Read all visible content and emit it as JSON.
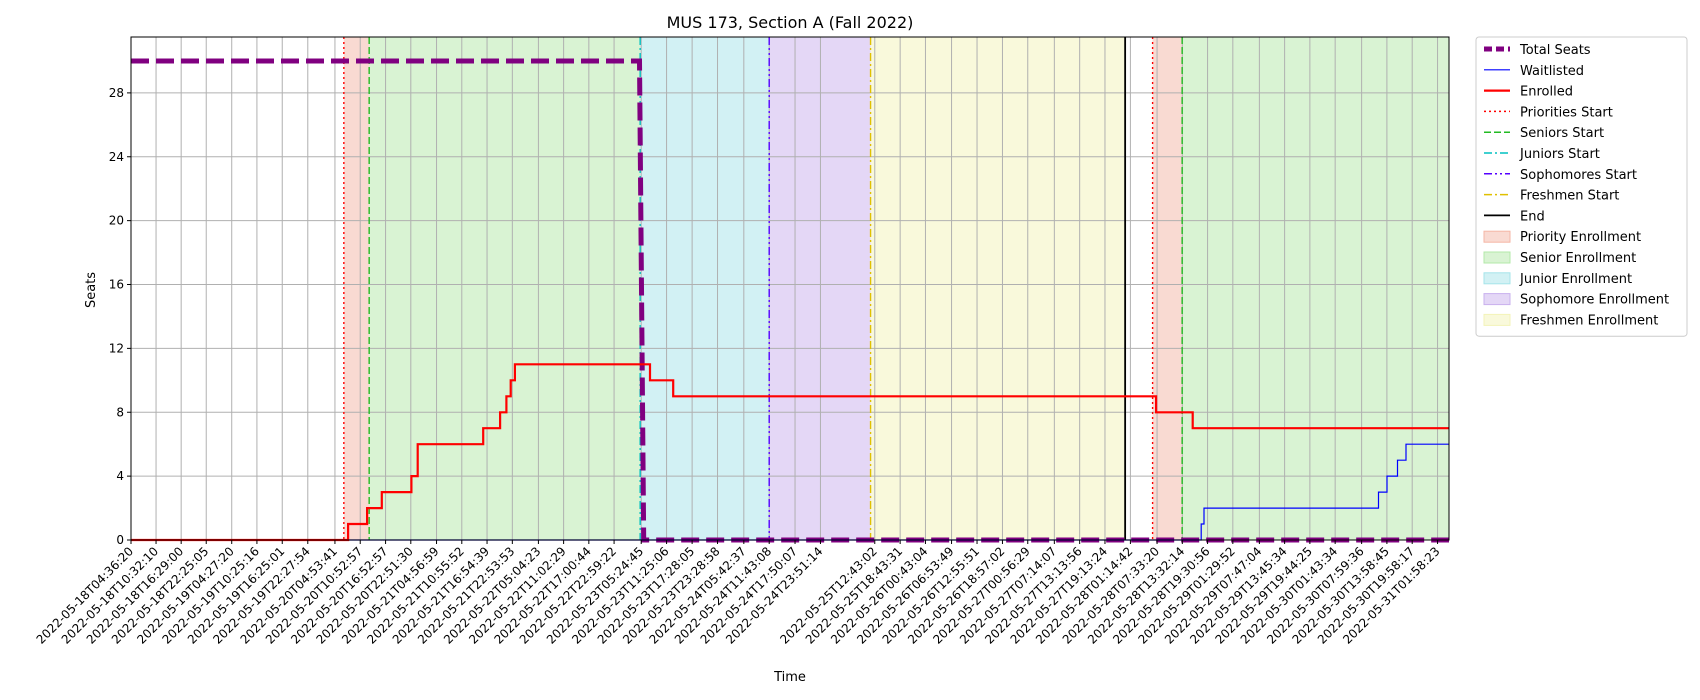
{
  "chart_data": {
    "type": "line",
    "title": "MUS 173, Section A (Fall 2022)",
    "xlabel": "Time",
    "ylabel": "Seats",
    "x_range": [
      "2022-05-18T04:36:20",
      "2022-05-31T04:41:00"
    ],
    "ylim": [
      0,
      31.5
    ],
    "y_ticks": [
      0,
      4,
      8,
      12,
      16,
      20,
      24,
      28
    ],
    "grid": true,
    "legend_position": "outside-top-right",
    "x_ticks": [
      "2022-05-18T04:36:20",
      "2022-05-18T10:32:10",
      "2022-05-18T16:29:00",
      "2022-05-18T22:25:05",
      "2022-05-19T04:27:20",
      "2022-05-19T10:25:16",
      "2022-05-19T16:25:01",
      "2022-05-19T22:27:54",
      "2022-05-20T04:53:41",
      "2022-05-20T10:52:57",
      "2022-05-20T16:52:57",
      "2022-05-20T22:51:30",
      "2022-05-21T04:56:59",
      "2022-05-21T10:55:52",
      "2022-05-21T16:54:39",
      "2022-05-21T22:53:53",
      "2022-05-22T05:04:23",
      "2022-05-22T11:02:29",
      "2022-05-22T17:00:44",
      "2022-05-22T22:59:22",
      "2022-05-23T05:24:45",
      "2022-05-23T11:25:06",
      "2022-05-23T17:28:05",
      "2022-05-23T23:28:58",
      "2022-05-24T05:42:37",
      "2022-05-24T11:43:08",
      "2022-05-24T17:50:07",
      "2022-05-24T23:51:14",
      "2022-05-25T12:43:02",
      "2022-05-25T18:43:31",
      "2022-05-26T00:43:04",
      "2022-05-26T06:53:49",
      "2022-05-26T12:55:51",
      "2022-05-26T18:57:02",
      "2022-05-27T00:56:29",
      "2022-05-27T07:14:07",
      "2022-05-27T13:13:56",
      "2022-05-27T19:13:24",
      "2022-05-28T01:14:42",
      "2022-05-28T07:33:20",
      "2022-05-28T13:32:14",
      "2022-05-28T19:30:56",
      "2022-05-29T01:29:52",
      "2022-05-29T07:47:04",
      "2022-05-29T13:45:34",
      "2022-05-29T19:44:25",
      "2022-05-30T01:43:34",
      "2022-05-30T07:59:36",
      "2022-05-30T13:58:45",
      "2022-05-30T19:58:17",
      "2022-05-31T01:58:23"
    ],
    "series": [
      {
        "name": "Total Seats",
        "color": "#800080",
        "style": "dashed-thick",
        "points": [
          [
            "2022-05-18T04:36:20",
            30
          ],
          [
            "2022-05-23T05:00:00",
            30
          ],
          [
            "2022-05-23T06:00:00",
            0
          ],
          [
            "2022-05-31T04:41:00",
            0
          ]
        ]
      },
      {
        "name": "Waitlisted",
        "color": "#0000ff",
        "style": "solid-thin",
        "points": [
          [
            "2022-05-18T04:36:20",
            0
          ],
          [
            "2022-05-28T18:00:00",
            0
          ],
          [
            "2022-05-28T18:00:00",
            1
          ],
          [
            "2022-05-28T18:40:00",
            1
          ],
          [
            "2022-05-28T18:40:00",
            2
          ],
          [
            "2022-05-30T12:00:00",
            2
          ],
          [
            "2022-05-30T12:00:00",
            3
          ],
          [
            "2022-05-30T14:00:00",
            3
          ],
          [
            "2022-05-30T14:00:00",
            4
          ],
          [
            "2022-05-30T16:30:00",
            4
          ],
          [
            "2022-05-30T16:30:00",
            5
          ],
          [
            "2022-05-30T18:30:00",
            5
          ],
          [
            "2022-05-30T18:30:00",
            6
          ],
          [
            "2022-05-31T04:41:00",
            6
          ]
        ]
      },
      {
        "name": "Enrolled",
        "color": "#ff0000",
        "style": "solid-thick",
        "points": [
          [
            "2022-05-18T04:36:20",
            0
          ],
          [
            "2022-05-20T08:00:00",
            0
          ],
          [
            "2022-05-20T08:00:00",
            1
          ],
          [
            "2022-05-20T12:30:00",
            1
          ],
          [
            "2022-05-20T12:30:00",
            2
          ],
          [
            "2022-05-20T16:00:00",
            2
          ],
          [
            "2022-05-20T16:00:00",
            3
          ],
          [
            "2022-05-20T23:00:00",
            3
          ],
          [
            "2022-05-20T23:00:00",
            4
          ],
          [
            "2022-05-21T00:30:00",
            4
          ],
          [
            "2022-05-21T00:30:00",
            6
          ],
          [
            "2022-05-21T16:00:00",
            6
          ],
          [
            "2022-05-21T16:00:00",
            7
          ],
          [
            "2022-05-21T20:00:00",
            7
          ],
          [
            "2022-05-21T20:00:00",
            8
          ],
          [
            "2022-05-21T21:30:00",
            8
          ],
          [
            "2022-05-21T21:30:00",
            9
          ],
          [
            "2022-05-21T22:30:00",
            9
          ],
          [
            "2022-05-21T22:30:00",
            10
          ],
          [
            "2022-05-21T23:30:00",
            10
          ],
          [
            "2022-05-21T23:30:00",
            11
          ],
          [
            "2022-05-23T07:30:00",
            11
          ],
          [
            "2022-05-23T07:30:00",
            10
          ],
          [
            "2022-05-23T13:00:00",
            10
          ],
          [
            "2022-05-23T13:00:00",
            9
          ],
          [
            "2022-05-28T07:20:00",
            9
          ],
          [
            "2022-05-28T07:20:00",
            8
          ],
          [
            "2022-05-28T16:00:00",
            8
          ],
          [
            "2022-05-28T16:00:00",
            7
          ],
          [
            "2022-05-31T04:41:00",
            7
          ]
        ]
      }
    ],
    "markers": [
      {
        "name": "Priorities Start",
        "time": "2022-05-20T07:00:00",
        "color": "#ff0000",
        "style": "dotted"
      },
      {
        "name": "Seniors Start",
        "time": "2022-05-20T13:00:00",
        "color": "#22bb22",
        "style": "dashed"
      },
      {
        "name": "Juniors Start",
        "time": "2022-05-23T05:10:00",
        "color": "#00c0c0",
        "style": "dashdot"
      },
      {
        "name": "Sophomores Start",
        "time": "2022-05-24T11:43:08",
        "color": "#5500ff",
        "style": "dashdotdot"
      },
      {
        "name": "Freshmen Start",
        "time": "2022-05-25T11:43:08",
        "color": "#e0c000",
        "style": "dashdot"
      },
      {
        "name": "End",
        "time": "2022-05-28T00:00:00",
        "color": "#000000",
        "style": "solid"
      },
      {
        "name": "Priorities Start",
        "time": "2022-05-28T06:30:00",
        "color": "#ff0000",
        "style": "dotted"
      },
      {
        "name": "Seniors Start",
        "time": "2022-05-28T13:30:00",
        "color": "#22bb22",
        "style": "dashed"
      }
    ],
    "phases": [
      {
        "name": "Priority Enrollment",
        "start": "2022-05-20T07:00:00",
        "end": "2022-05-20T13:00:00",
        "color": "#f4b6a6"
      },
      {
        "name": "Senior Enrollment",
        "start": "2022-05-20T13:00:00",
        "end": "2022-05-23T05:10:00",
        "color": "#b3e8a8"
      },
      {
        "name": "Junior Enrollment",
        "start": "2022-05-23T05:10:00",
        "end": "2022-05-24T11:43:08",
        "color": "#a6e4ea"
      },
      {
        "name": "Sophomore Enrollment",
        "start": "2022-05-24T11:43:08",
        "end": "2022-05-25T11:43:08",
        "color": "#c9b0ee"
      },
      {
        "name": "Freshmen Enrollment",
        "start": "2022-05-25T11:43:08",
        "end": "2022-05-28T00:00:00",
        "color": "#f3f3b8"
      },
      {
        "name": "Priority Enrollment",
        "start": "2022-05-28T06:30:00",
        "end": "2022-05-28T13:30:00",
        "color": "#f4b6a6"
      },
      {
        "name": "Senior Enrollment",
        "start": "2022-05-28T13:30:00",
        "end": "2022-05-31T04:41:00",
        "color": "#b3e8a8"
      }
    ],
    "legend": [
      {
        "label": "Total Seats",
        "kind": "line",
        "color": "#800080",
        "style": "dashed-thick"
      },
      {
        "label": "Waitlisted",
        "kind": "line",
        "color": "#0000ff",
        "style": "solid-thin"
      },
      {
        "label": "Enrolled",
        "kind": "line",
        "color": "#ff0000",
        "style": "solid-thick"
      },
      {
        "label": "Priorities Start",
        "kind": "line",
        "color": "#ff0000",
        "style": "dotted"
      },
      {
        "label": "Seniors Start",
        "kind": "line",
        "color": "#22bb22",
        "style": "dashed"
      },
      {
        "label": "Juniors Start",
        "kind": "line",
        "color": "#00c0c0",
        "style": "dashdot"
      },
      {
        "label": "Sophomores Start",
        "kind": "line",
        "color": "#5500ff",
        "style": "dashdotdot"
      },
      {
        "label": "Freshmen Start",
        "kind": "line",
        "color": "#e0c000",
        "style": "dashdot"
      },
      {
        "label": "End",
        "kind": "line",
        "color": "#000000",
        "style": "solid"
      },
      {
        "label": "Priority Enrollment",
        "kind": "patch",
        "color": "#f4b6a6"
      },
      {
        "label": "Senior Enrollment",
        "kind": "patch",
        "color": "#b3e8a8"
      },
      {
        "label": "Junior Enrollment",
        "kind": "patch",
        "color": "#a6e4ea"
      },
      {
        "label": "Sophomore Enrollment",
        "kind": "patch",
        "color": "#c9b0ee"
      },
      {
        "label": "Freshmen Enrollment",
        "kind": "patch",
        "color": "#f3f3b8"
      }
    ]
  }
}
